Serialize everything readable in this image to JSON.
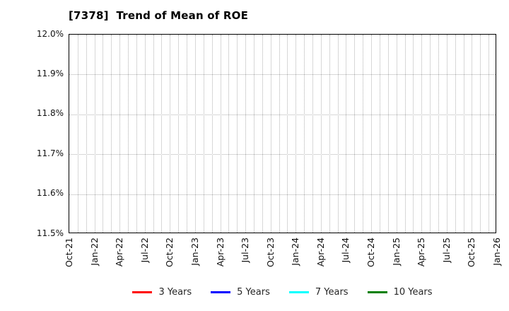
{
  "chart_data": {
    "type": "line",
    "title": "[7378]  Trend of Mean of ROE",
    "x_tick_labels": [
      "Oct-21",
      "Jan-22",
      "Apr-22",
      "Jul-22",
      "Oct-22",
      "Jan-23",
      "Apr-23",
      "Jul-23",
      "Oct-23",
      "Jan-24",
      "Apr-24",
      "Jul-24",
      "Oct-24",
      "Jan-25",
      "Apr-25",
      "Jul-25",
      "Oct-25",
      "Jan-26"
    ],
    "x_tick_interval_months": 3,
    "y_tick_labels": [
      "12.0%",
      "11.9%",
      "11.8%",
      "11.7%",
      "11.6%",
      "11.5%"
    ],
    "ylim": [
      11.5,
      12.0
    ],
    "y_unit": "%",
    "grid": {
      "visible": true,
      "style": "dotted",
      "vertical_spacing": "monthly",
      "horizontal_step_pct": 0.1,
      "color": "#b0b0b0"
    },
    "legend_position": "bottom-center",
    "series": [
      {
        "name": "3 Years",
        "color": "#ff0000",
        "values": []
      },
      {
        "name": "5 Years",
        "color": "#0000ff",
        "values": []
      },
      {
        "name": "7 Years",
        "color": "#00ffff",
        "values": []
      },
      {
        "name": "10 Years",
        "color": "#008000",
        "values": []
      }
    ],
    "note": "No data lines are plotted; plot area is empty."
  },
  "colors": {
    "background": "#ffffff",
    "axis_border": "#000000",
    "tick_label": "#111111",
    "legend_text": "#262626",
    "gridline": "#b0b0b0"
  }
}
